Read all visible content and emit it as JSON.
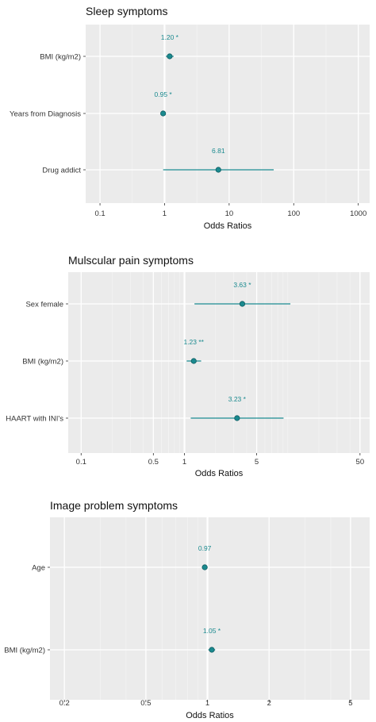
{
  "theme": {
    "panel_bg": "#ebebeb",
    "grid_major": "#ffffff",
    "grid_minor": "#f4f4f4",
    "series_color": "#1b8a8f",
    "text_color": "#333333"
  },
  "chart_data": [
    {
      "type": "forest",
      "title": "Sleep symptoms",
      "xlabel": "Odds Ratios",
      "x_scale": "log",
      "xlim": [
        0.06,
        1500
      ],
      "ticks": [
        0.1,
        1,
        10,
        100,
        1000
      ],
      "tick_labels": [
        "0.1",
        "1",
        "10",
        "100",
        "1000"
      ],
      "minor_ticks": [
        0.316,
        3.16,
        31.6,
        316
      ],
      "reference_line": 1,
      "rows": [
        {
          "label": "BMI (kg/m2)",
          "or": 1.2,
          "ci_low": 1.05,
          "ci_high": 1.38,
          "text": "1.20 *"
        },
        {
          "label": "Years from Diagnosis",
          "or": 0.95,
          "ci_low": 0.9,
          "ci_high": 0.99,
          "text": "0.95 *"
        },
        {
          "label": "Drug addict",
          "or": 6.81,
          "ci_low": 0.95,
          "ci_high": 49,
          "text": "6.81"
        }
      ]
    },
    {
      "type": "forest",
      "title": "Mulscular pain symptoms",
      "xlabel": "Odds Ratios",
      "x_scale": "log",
      "xlim": [
        0.075,
        62
      ],
      "ticks": [
        0.1,
        0.5,
        1,
        5,
        50
      ],
      "tick_labels": [
        "0.1",
        "0.5",
        "1",
        "5",
        "50"
      ],
      "minor_ticks": [
        0.2,
        0.3,
        0.4,
        0.6,
        0.7,
        0.8,
        0.9,
        2,
        3,
        4,
        6,
        7,
        8,
        9,
        10,
        20,
        30,
        40
      ],
      "reference_line": 1,
      "rows": [
        {
          "label": "Sex female",
          "or": 3.63,
          "ci_low": 1.25,
          "ci_high": 10.6,
          "text": "3.63 *"
        },
        {
          "label": "BMI (kg/m2)",
          "or": 1.23,
          "ci_low": 1.05,
          "ci_high": 1.45,
          "text": "1.23 **"
        },
        {
          "label": "HAART with INI's",
          "or": 3.23,
          "ci_low": 1.15,
          "ci_high": 9.1,
          "text": "3.23 *"
        }
      ]
    },
    {
      "type": "forest",
      "title": "Image problem symptoms",
      "xlabel": "Odds Ratios",
      "x_scale": "log",
      "xlim": [
        0.17,
        6.2
      ],
      "ticks": [
        0.2,
        0.5,
        1,
        2,
        5
      ],
      "tick_labels": [
        "0.2",
        "0.5",
        "1",
        "2",
        "5"
      ],
      "minor_ticks": [
        0.3,
        0.4,
        0.6,
        0.7,
        0.8,
        0.9,
        3,
        4
      ],
      "reference_line": 1,
      "rows": [
        {
          "label": "Age",
          "or": 0.97,
          "ci_low": 0.94,
          "ci_high": 1.0,
          "text": "0.97"
        },
        {
          "label": "BMI (kg/m2)",
          "or": 1.05,
          "ci_low": 1.01,
          "ci_high": 1.09,
          "text": "1.05 *"
        }
      ]
    }
  ]
}
